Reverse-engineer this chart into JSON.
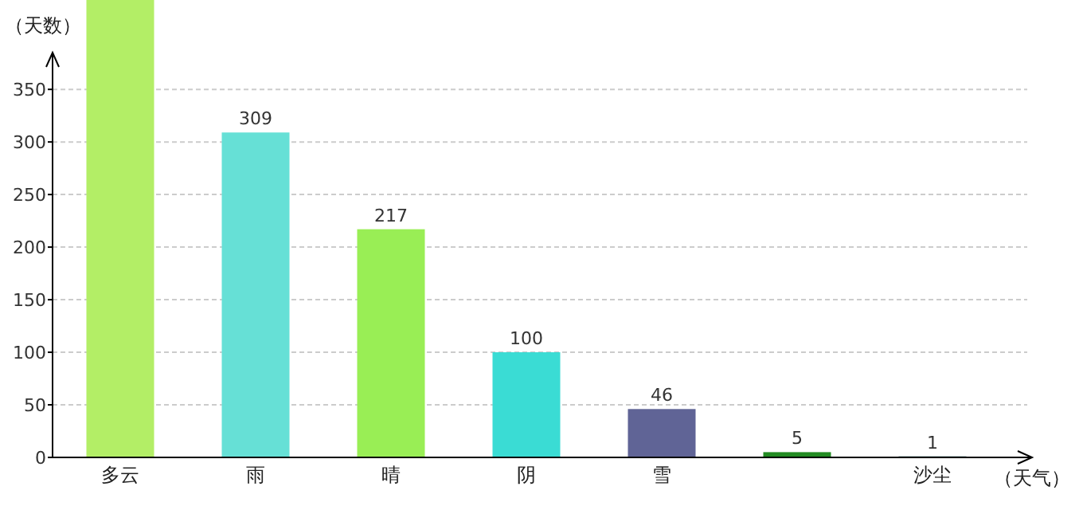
{
  "chart_data": {
    "type": "bar",
    "ylabel": "（天数）",
    "xlabel": "（天气）",
    "categories": [
      "多云",
      "雨",
      "晴",
      "阴",
      "雪",
      null,
      "沙尘"
    ],
    "values": [
      435,
      309,
      217,
      100,
      46,
      5,
      1
    ],
    "colors": [
      "#b3ee66",
      "#66e0d6",
      "#99ee55",
      "#3adcd4",
      "#606496",
      "#228b22",
      "#336666"
    ],
    "ylim": [
      0,
      435
    ],
    "yticks": [
      0,
      50,
      100,
      150,
      200,
      250,
      300,
      350
    ],
    "grid": "y",
    "value_labels": [
      null,
      "309",
      "217",
      "100",
      "46",
      "5",
      "1"
    ]
  }
}
